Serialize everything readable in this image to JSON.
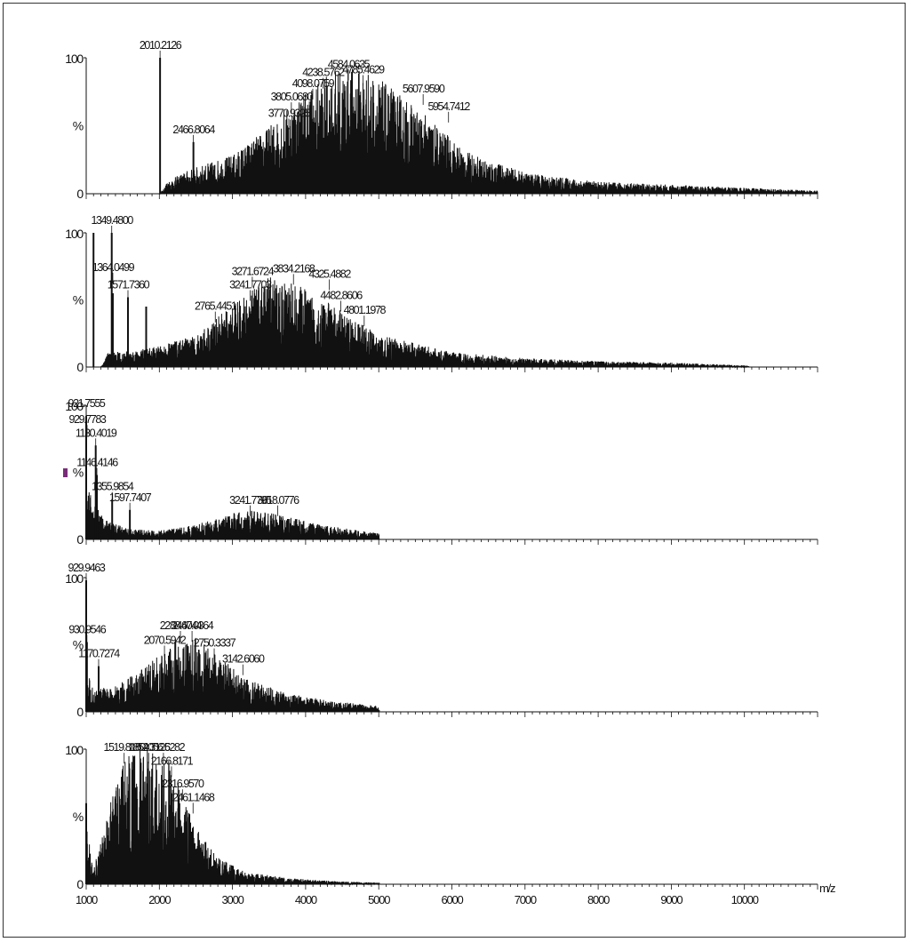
{
  "chart_data": {
    "type": "line",
    "xlabel": "m/z",
    "x_axis": {
      "range": [
        1000,
        11000
      ],
      "tick_labels": [
        "1000",
        "2000",
        "3000",
        "4000",
        "5000",
        "6000",
        "7000",
        "8000",
        "9000",
        "10000"
      ]
    },
    "y_axis": {
      "labels": [
        "0",
        "%",
        "100"
      ],
      "range": [
        0,
        100
      ]
    },
    "colors": {
      "trace": "#111111",
      "marker": "#7a2c7a"
    },
    "panels": [
      {
        "xmax": 11000,
        "base_peaks": [
          {
            "mz": 2010,
            "h": 100
          },
          {
            "mz": 2466,
            "h": 38
          }
        ],
        "envelope": [
          [
            1000,
            0
          ],
          [
            2010,
            0
          ],
          [
            2100,
            8
          ],
          [
            2400,
            16
          ],
          [
            3000,
            26
          ],
          [
            3500,
            45
          ],
          [
            4000,
            70
          ],
          [
            4500,
            85
          ],
          [
            4800,
            84
          ],
          [
            5200,
            70
          ],
          [
            5700,
            50
          ],
          [
            6200,
            28
          ],
          [
            7000,
            14
          ],
          [
            8000,
            8
          ],
          [
            9000,
            6
          ],
          [
            10000,
            4
          ],
          [
            11000,
            2
          ]
        ],
        "peak_labels": [
          {
            "mz": 2010,
            "h": 100,
            "text": "2010.2126"
          },
          {
            "mz": 2466,
            "h": 38,
            "text": "2466.8064"
          },
          {
            "mz": 3770,
            "h": 50,
            "text": "3770.9325"
          },
          {
            "mz": 3805,
            "h": 62,
            "text": "3805.0680"
          },
          {
            "mz": 4098,
            "h": 72,
            "text": "4098.0759"
          },
          {
            "mz": 4238,
            "h": 80,
            "text": "4238.5762"
          },
          {
            "mz": 4584,
            "h": 86,
            "text": "4584.0635"
          },
          {
            "mz": 4785,
            "h": 82,
            "text": "4785.4629"
          },
          {
            "mz": 5607,
            "h": 68,
            "text": "5607.9590"
          },
          {
            "mz": 5954,
            "h": 55,
            "text": "5954.7412"
          }
        ]
      },
      {
        "xmax": 10060,
        "base_peaks": [
          {
            "mz": 1100,
            "h": 100
          },
          {
            "mz": 1349,
            "h": 100
          },
          {
            "mz": 1364,
            "h": 55
          },
          {
            "mz": 1571,
            "h": 52
          },
          {
            "mz": 1820,
            "h": 45
          }
        ],
        "envelope": [
          [
            1000,
            0
          ],
          [
            1200,
            0
          ],
          [
            1300,
            10
          ],
          [
            1600,
            11
          ],
          [
            2000,
            14
          ],
          [
            2500,
            22
          ],
          [
            3000,
            42
          ],
          [
            3500,
            62
          ],
          [
            3800,
            58
          ],
          [
            4300,
            44
          ],
          [
            5000,
            22
          ],
          [
            6000,
            10
          ],
          [
            7000,
            6
          ],
          [
            8000,
            4
          ],
          [
            9000,
            3
          ],
          [
            10060,
            1
          ]
        ],
        "peak_labels": [
          {
            "mz": 1349,
            "h": 100,
            "text": "1349.4800"
          },
          {
            "mz": 1364,
            "h": 65,
            "text": "1364.0499"
          },
          {
            "mz": 1571,
            "h": 52,
            "text": "1571.7360"
          },
          {
            "mz": 2765,
            "h": 36,
            "text": "2765.4451"
          },
          {
            "mz": 3241,
            "h": 52,
            "text": "3241.7703"
          },
          {
            "mz": 3271,
            "h": 62,
            "text": "3271.6724"
          },
          {
            "mz": 3834,
            "h": 64,
            "text": "3834.2168"
          },
          {
            "mz": 4325,
            "h": 60,
            "text": "4325.4882"
          },
          {
            "mz": 4482,
            "h": 44,
            "text": "4482.8606"
          },
          {
            "mz": 4801,
            "h": 33,
            "text": "4801.1978"
          }
        ]
      },
      {
        "xmax": 5010,
        "base_peaks": [
          {
            "mz": 1000,
            "h": 92
          },
          {
            "mz": 1130,
            "h": 70
          },
          {
            "mz": 1146,
            "h": 48
          },
          {
            "mz": 1355,
            "h": 30
          },
          {
            "mz": 1597,
            "h": 22
          }
        ],
        "envelope": [
          [
            1000,
            40
          ],
          [
            1100,
            25
          ],
          [
            1300,
            12
          ],
          [
            1600,
            7
          ],
          [
            2000,
            6
          ],
          [
            2500,
            10
          ],
          [
            3000,
            18
          ],
          [
            3300,
            20
          ],
          [
            3700,
            16
          ],
          [
            4200,
            10
          ],
          [
            5010,
            4
          ]
        ],
        "peak_labels": [
          {
            "mz": 1000,
            "h": 92,
            "text": "921.7555"
          },
          {
            "mz": 1012,
            "h": 80,
            "text": "929.7783"
          },
          {
            "mz": 1130,
            "h": 70,
            "text": "1130.4019"
          },
          {
            "mz": 1146,
            "h": 48,
            "text": "1146.4146"
          },
          {
            "mz": 1355,
            "h": 30,
            "text": "1355.9854"
          },
          {
            "mz": 1597,
            "h": 22,
            "text": "1597.7407"
          },
          {
            "mz": 3241,
            "h": 20,
            "text": "3241.7795"
          },
          {
            "mz": 3618,
            "h": 20,
            "text": "3618.0776"
          }
        ]
      },
      {
        "xmax": 5010,
        "base_peaks": [
          {
            "mz": 1000,
            "h": 98
          },
          {
            "mz": 1010,
            "h": 52
          },
          {
            "mz": 1170,
            "h": 34
          }
        ],
        "envelope": [
          [
            1000,
            30
          ],
          [
            1100,
            15
          ],
          [
            1400,
            18
          ],
          [
            1800,
            30
          ],
          [
            2200,
            48
          ],
          [
            2450,
            52
          ],
          [
            2800,
            38
          ],
          [
            3200,
            22
          ],
          [
            3800,
            12
          ],
          [
            4400,
            7
          ],
          [
            5010,
            4
          ]
        ],
        "peak_labels": [
          {
            "mz": 1000,
            "h": 98,
            "text": "929.9463"
          },
          {
            "mz": 1010,
            "h": 52,
            "text": "930.9546"
          },
          {
            "mz": 1170,
            "h": 34,
            "text": "1170.7274"
          },
          {
            "mz": 2070,
            "h": 44,
            "text": "2070.5942"
          },
          {
            "mz": 2288,
            "h": 55,
            "text": "2288.6044"
          },
          {
            "mz": 2447,
            "h": 55,
            "text": "2447.0364"
          },
          {
            "mz": 2750,
            "h": 42,
            "text": "2750.3337"
          },
          {
            "mz": 3142,
            "h": 30,
            "text": "3142.6060"
          }
        ]
      },
      {
        "xmax": 5010,
        "base_peaks": [
          {
            "mz": 1000,
            "h": 60
          }
        ],
        "envelope": [
          [
            1000,
            45
          ],
          [
            1100,
            10
          ],
          [
            1300,
            50
          ],
          [
            1500,
            82
          ],
          [
            1700,
            92
          ],
          [
            1900,
            94
          ],
          [
            2100,
            88
          ],
          [
            2300,
            62
          ],
          [
            2500,
            38
          ],
          [
            2800,
            18
          ],
          [
            3200,
            8
          ],
          [
            3800,
            4
          ],
          [
            4400,
            2
          ],
          [
            5010,
            1
          ]
        ],
        "peak_labels": [
          {
            "mz": 1519,
            "h": 92,
            "text": "1519.8180"
          },
          {
            "mz": 1854,
            "h": 92,
            "text": "1854.3125"
          },
          {
            "mz": 2056,
            "h": 92,
            "text": "2056.6282"
          },
          {
            "mz": 2166,
            "h": 82,
            "text": "2166.8171"
          },
          {
            "mz": 2316,
            "h": 65,
            "text": "2316.9570"
          },
          {
            "mz": 2461,
            "h": 55,
            "text": "2461.1468"
          }
        ]
      }
    ]
  }
}
